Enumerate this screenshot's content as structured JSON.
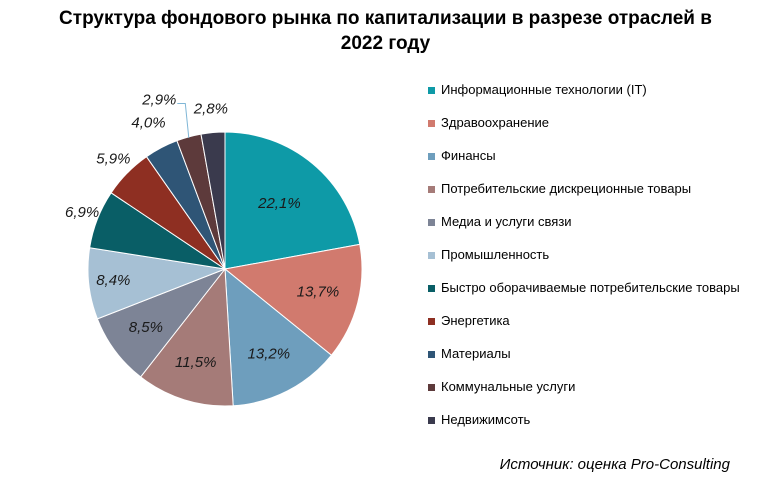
{
  "chart_data": {
    "type": "pie",
    "title_lines": [
      "Структура фондового рынка по капитализации в разрезе отраслей в",
      "2022 году"
    ],
    "slices": [
      {
        "name": "Информационные технологии (IT)",
        "value": 22.1,
        "label": "22,1%",
        "color": "#0e9aa7"
      },
      {
        "name": "Здравоохранение",
        "value": 13.7,
        "label": "13,7%",
        "color": "#d17a6e"
      },
      {
        "name": "Финансы",
        "value": 13.2,
        "label": "13,2%",
        "color": "#6e9ebd"
      },
      {
        "name": "Потребительские дискреционные товары",
        "value": 11.5,
        "label": "11,5%",
        "color": "#a57b78"
      },
      {
        "name": "Медиа и услуги связи",
        "value": 8.5,
        "label": "8,5%",
        "color": "#7d8496"
      },
      {
        "name": "Промышленность",
        "value": 8.4,
        "label": "8,4%",
        "color": "#a6c0d4"
      },
      {
        "name": "Быстро оборачиваемые потребительские товары",
        "value": 6.9,
        "label": "6,9%",
        "color": "#095e66"
      },
      {
        "name": "Энергетика",
        "value": 5.9,
        "label": "5,9%",
        "color": "#8e2f22"
      },
      {
        "name": "Материалы",
        "value": 4.0,
        "label": "4,0%",
        "color": "#2f5576"
      },
      {
        "name": "Коммунальные услуги",
        "value": 2.9,
        "label": "2,9%",
        "color": "#5d3a3b"
      },
      {
        "name": "Недвижимсоть",
        "value": 2.8,
        "label": "2,8%",
        "color": "#3a3a4d"
      }
    ],
    "legend_position": "right"
  },
  "source": "Источник: оценка Pro-Consulting"
}
